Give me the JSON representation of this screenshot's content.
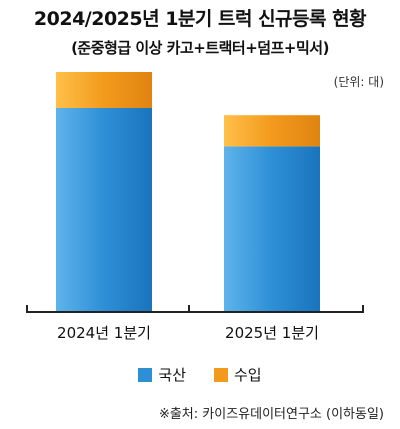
{
  "chart_data": {
    "type": "bar",
    "stacked": true,
    "title": "2024/2025년 1분기 트럭 신규등록 현황",
    "subtitle": "(준중형급 이상 카고+트랙터+덤프+믹서)",
    "unit": "(단위: 대)",
    "categories": [
      "2024년 1분기",
      "2025년 1분기"
    ],
    "series": [
      {
        "name": "국산",
        "values": [
          85,
          69
        ],
        "color": "#2d8fd6"
      },
      {
        "name": "수입",
        "values": [
          15,
          13
        ],
        "color": "#f39a1c"
      }
    ],
    "ylim": [
      0,
      100
    ],
    "grid": false,
    "legend_position": "bottom",
    "source": "※출처: 카이즈유데이터연구소 (이하동일)"
  }
}
